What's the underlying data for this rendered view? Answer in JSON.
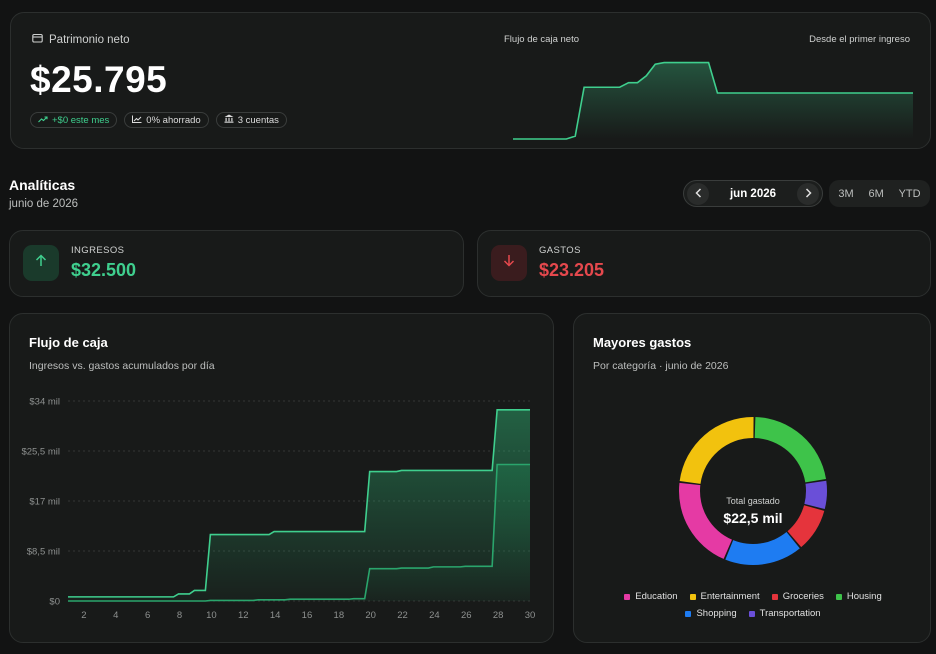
{
  "net_worth": {
    "label": "Patrimonio neto",
    "value": "$25.795",
    "pills": [
      {
        "text": "+$0 este mes",
        "icon": "trend-up-icon"
      },
      {
        "text": "0% ahorrado",
        "icon": "chart-icon"
      },
      {
        "text": "3 cuentas",
        "icon": "bank-icon"
      }
    ],
    "chart_label": "Flujo de caja neto",
    "chart_sublabel": "Desde el primer ingreso",
    "spark": [
      0,
      0,
      0,
      0,
      0,
      0,
      0,
      0.5,
      9,
      9,
      9,
      9,
      9,
      9.8,
      9.8,
      11,
      13,
      13.3,
      13.3,
      13.3,
      13.3,
      13.3,
      13.3,
      8,
      8,
      8,
      8,
      8,
      8,
      8,
      8,
      8,
      8,
      8,
      8,
      8,
      8,
      8,
      8,
      8,
      8,
      8,
      8,
      8,
      8,
      8
    ]
  },
  "analytics": {
    "title": "Analíticas",
    "subtitle": "junio de 2026",
    "month": "jun 2026",
    "ranges": [
      "3M",
      "6M",
      "YTD"
    ]
  },
  "income": {
    "label": "INGRESOS",
    "value": "$32.500"
  },
  "expenses": {
    "label": "GASTOS",
    "value": "$23.205"
  },
  "cashflow": {
    "title": "Flujo de caja",
    "subtitle": "Ingresos vs. gastos acumulados por día"
  },
  "top_expenses": {
    "title": "Mayores gastos",
    "subtitle": "Por categoría · junio de 2026",
    "center_label": "Total gastado",
    "center_value": "$22,5 mil"
  },
  "chart_data": [
    {
      "type": "area",
      "title": "Flujo de caja",
      "ylim": [
        0,
        34000
      ],
      "y_ticks": [
        "$0",
        "$8,5 mil",
        "$17 mil",
        "$25,5 mil",
        "$34 mil"
      ],
      "x_ticks": [
        2,
        4,
        6,
        8,
        10,
        12,
        14,
        16,
        18,
        20,
        22,
        24,
        26,
        28,
        30
      ],
      "x": [
        1,
        2,
        3,
        4,
        5,
        6,
        7,
        8,
        9,
        10,
        11,
        12,
        13,
        14,
        15,
        16,
        17,
        18,
        19,
        20,
        21,
        22,
        23,
        24,
        25,
        26,
        27,
        28,
        29,
        30
      ],
      "series": [
        {
          "name": "Ingresos",
          "color": "#3fcf8e",
          "values": [
            700,
            700,
            700,
            700,
            700,
            700,
            700,
            1200,
            1800,
            11300,
            11300,
            11300,
            11300,
            11800,
            11800,
            11800,
            11800,
            11800,
            11800,
            22000,
            22000,
            22200,
            22200,
            22200,
            22200,
            22200,
            22200,
            32500,
            32500,
            32500
          ]
        },
        {
          "name": "Gastos",
          "color": "#2aa56c",
          "values": [
            0,
            0,
            0,
            0,
            0,
            0,
            0,
            0,
            0,
            100,
            100,
            100,
            200,
            200,
            300,
            300,
            300,
            300,
            400,
            5500,
            5500,
            5600,
            5600,
            5800,
            5800,
            5900,
            5900,
            23205,
            23205,
            23205
          ]
        }
      ],
      "grid": true
    },
    {
      "type": "pie",
      "title": "Mayores gastos",
      "labels": [
        "Housing",
        "Transportation",
        "Groceries",
        "Shopping",
        "Education",
        "Entertainment"
      ],
      "colors": [
        "#3ec34a",
        "#6a4fd8",
        "#e5343c",
        "#1e7cf2",
        "#e53aa4",
        "#f2c20e"
      ],
      "values": [
        20.5,
        6,
        9,
        16,
        19,
        21.5
      ],
      "legend": "bottom",
      "legend_order": [
        "Education",
        "Entertainment",
        "Groceries",
        "Housing",
        "Shopping",
        "Transportation"
      ]
    }
  ]
}
